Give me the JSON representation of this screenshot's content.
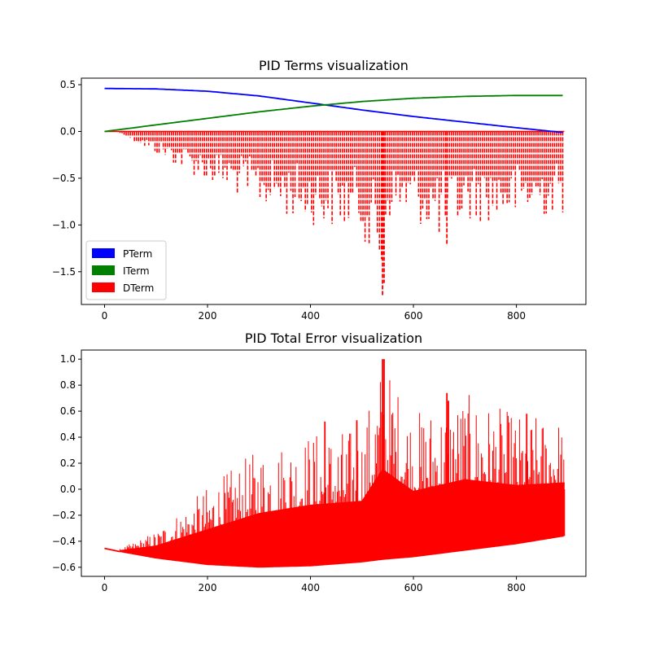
{
  "chart_data": [
    {
      "type": "line",
      "title": "PID Terms visualization",
      "xlabel": "",
      "ylabel": "",
      "xlim": [
        -45,
        935
      ],
      "ylim": [
        -1.85,
        0.57
      ],
      "x_ticks": [
        0,
        200,
        400,
        600,
        800
      ],
      "x_tick_labels": [
        "0",
        "200",
        "400",
        "600",
        "800"
      ],
      "y_ticks": [
        0.5,
        0.0,
        -0.5,
        -1.0,
        -1.5
      ],
      "y_tick_labels": [
        "0.5",
        "0.0",
        "−0.5",
        "−1.0",
        "−1.5"
      ],
      "grid": false,
      "legend_position": "lower-left",
      "series": [
        {
          "name": "PTerm",
          "color": "#0000ff",
          "style": "solid",
          "x": [
            0,
            100,
            200,
            300,
            400,
            500,
            600,
            700,
            800,
            880,
            893
          ],
          "y": [
            0.46,
            0.455,
            0.43,
            0.38,
            0.305,
            0.23,
            0.16,
            0.1,
            0.04,
            -0.005,
            -0.01
          ]
        },
        {
          "name": "ITerm",
          "color": "#008000",
          "style": "solid",
          "x": [
            0,
            100,
            200,
            300,
            400,
            500,
            600,
            700,
            800,
            893
          ],
          "y": [
            0.0,
            0.07,
            0.14,
            0.21,
            0.27,
            0.32,
            0.355,
            0.375,
            0.385,
            0.385
          ]
        },
        {
          "name": "DTerm",
          "color": "#ff0000",
          "style": "dashed",
          "x": [
            30,
            100,
            200,
            300,
            400,
            500,
            540,
            543,
            550,
            600,
            665,
            700,
            800,
            893
          ],
          "y": [
            -0.02,
            -0.25,
            -0.55,
            -0.8,
            -1.0,
            -1.08,
            -1.75,
            -1.62,
            -0.95,
            -0.95,
            -1.22,
            -0.98,
            -0.95,
            -0.9
          ]
        }
      ]
    },
    {
      "type": "line",
      "title": "PID Total Error visualization",
      "xlabel": "",
      "ylabel": "",
      "xlim": [
        -45,
        935
      ],
      "ylim": [
        -0.67,
        1.07
      ],
      "x_ticks": [
        0,
        200,
        400,
        600,
        800
      ],
      "x_tick_labels": [
        "0",
        "200",
        "400",
        "600",
        "800"
      ],
      "y_ticks": [
        1.0,
        0.8,
        0.6,
        0.4,
        0.2,
        0.0,
        -0.2,
        -0.4,
        -0.6
      ],
      "y_tick_labels": [
        "1.0",
        "0.8",
        "0.6",
        "0.4",
        "0.2",
        "0.0",
        "−0.2",
        "−0.4",
        "−0.6"
      ],
      "grid": false,
      "series": [
        {
          "color": "#ff0000",
          "style": "solid",
          "x": [
            0,
            30,
            100,
            200,
            300,
            400,
            500,
            540,
            600,
            700,
            800,
            893
          ],
          "y_lower": [
            -0.455,
            -0.48,
            -0.53,
            -0.58,
            -0.6,
            -0.59,
            -0.56,
            -0.54,
            -0.52,
            -0.47,
            -0.42,
            -0.36
          ],
          "y_upper": [
            -0.455,
            -0.46,
            -0.32,
            0.02,
            0.32,
            0.45,
            0.48,
            1.0,
            0.6,
            0.74,
            0.58,
            0.55
          ]
        }
      ]
    }
  ]
}
